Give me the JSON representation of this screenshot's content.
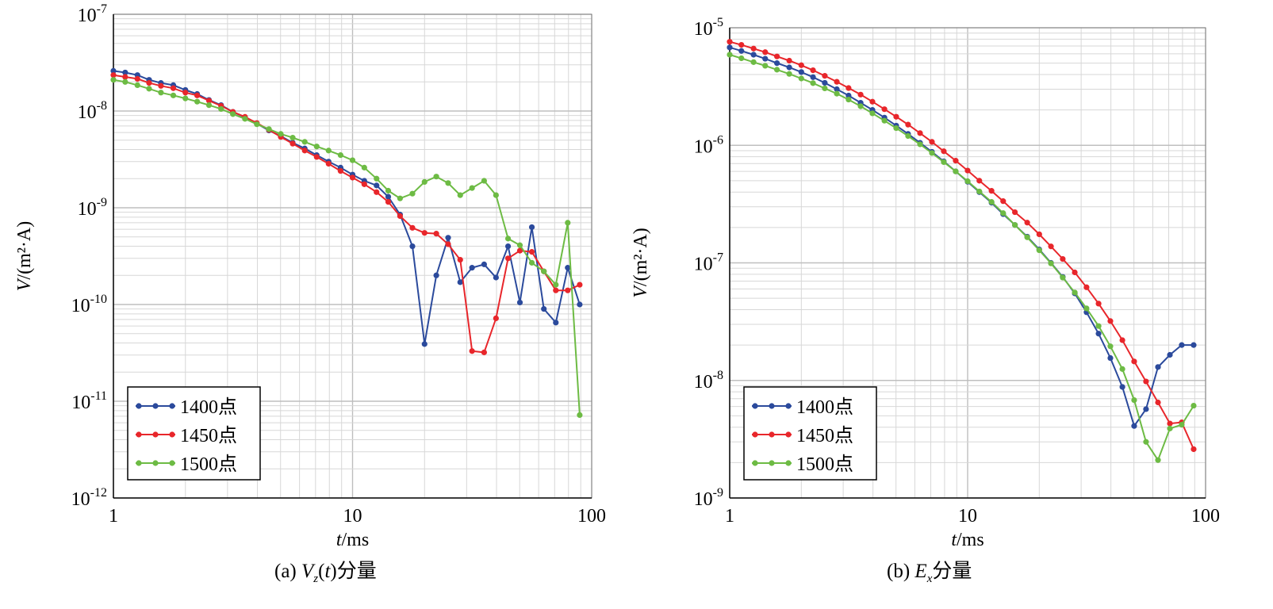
{
  "chart_data": [
    {
      "type": "line",
      "panel": "a",
      "caption": {
        "prefix": "(a) ",
        "var": "V",
        "sub": "z",
        "mid": "(",
        "targ": "t",
        "suffix": ")分量"
      },
      "xlabel": {
        "italic": "t",
        "rest": "/ms"
      },
      "ylabel": {
        "italic": "V",
        "rest": "/(m²·A)"
      },
      "x_scale": "log",
      "y_scale": "log",
      "xlim": [
        1,
        100
      ],
      "ylim": [
        1e-12,
        1e-07
      ],
      "x_ticks": [
        {
          "v": 1,
          "label": "1"
        },
        {
          "v": 10,
          "label": "10"
        },
        {
          "v": 100,
          "label": "100"
        }
      ],
      "y_ticks": [
        {
          "v": 1e-07,
          "base": "10",
          "exp": "-7"
        },
        {
          "v": 1e-08,
          "base": "10",
          "exp": "-8"
        },
        {
          "v": 1e-09,
          "base": "10",
          "exp": "-9"
        },
        {
          "v": 1e-10,
          "base": "10",
          "exp": "-10"
        },
        {
          "v": 1e-11,
          "base": "10",
          "exp": "-11"
        },
        {
          "v": 1e-12,
          "base": "10",
          "exp": "-12"
        }
      ],
      "grid": true,
      "legend_position": "bottom-left",
      "x": [
        1.0,
        1.12,
        1.26,
        1.41,
        1.58,
        1.78,
        2.0,
        2.24,
        2.51,
        2.82,
        3.16,
        3.55,
        3.98,
        4.47,
        5.01,
        5.62,
        6.31,
        7.08,
        7.94,
        8.91,
        10.0,
        11.2,
        12.6,
        14.1,
        15.8,
        17.8,
        20.0,
        22.4,
        25.1,
        28.2,
        31.6,
        35.5,
        39.8,
        44.7,
        50.1,
        56.2,
        63.1,
        70.8,
        79.4,
        89.1
      ],
      "series": [
        {
          "name": "1400点",
          "color": "#2b4a9c",
          "values": [
            2.6e-08,
            2.5e-08,
            2.35e-08,
            2.1e-08,
            1.95e-08,
            1.85e-08,
            1.65e-08,
            1.5e-08,
            1.3e-08,
            1.15e-08,
            9.8e-09,
            8.6e-09,
            7.4e-09,
            6.3e-09,
            5.5e-09,
            4.7e-09,
            4.1e-09,
            3.5e-09,
            3e-09,
            2.6e-09,
            2.2e-09,
            1.9e-09,
            1.7e-09,
            1.3e-09,
            8.5e-10,
            4e-10,
            3.9e-11,
            2e-10,
            4.9e-10,
            1.7e-10,
            2.4e-10,
            2.6e-10,
            1.9e-10,
            4e-10,
            1.05e-10,
            6.3e-10,
            9e-11,
            6.5e-11,
            2.4e-10,
            1e-10
          ]
        },
        {
          "name": "1450点",
          "color": "#e8262b",
          "values": [
            2.35e-08,
            2.25e-08,
            2.15e-08,
            1.95e-08,
            1.82e-08,
            1.72e-08,
            1.55e-08,
            1.45e-08,
            1.28e-08,
            1.13e-08,
            9.8e-09,
            8.7e-09,
            7.5e-09,
            6.4e-09,
            5.4e-09,
            4.6e-09,
            3.9e-09,
            3.35e-09,
            2.85e-09,
            2.4e-09,
            2.05e-09,
            1.75e-09,
            1.45e-09,
            1.15e-09,
            8.2e-10,
            6.2e-10,
            5.5e-10,
            5.4e-10,
            4.2e-10,
            2.9e-10,
            3.3e-11,
            3.2e-11,
            7.2e-11,
            3e-10,
            3.6e-10,
            3.5e-10,
            2.2e-10,
            1.4e-10,
            1.4e-10,
            1.6e-10
          ]
        },
        {
          "name": "1500点",
          "color": "#6dbb44",
          "values": [
            2.1e-08,
            2e-08,
            1.85e-08,
            1.7e-08,
            1.55e-08,
            1.45e-08,
            1.35e-08,
            1.25e-08,
            1.15e-08,
            1.05e-08,
            9.3e-09,
            8.3e-09,
            7.3e-09,
            6.5e-09,
            5.8e-09,
            5.3e-09,
            4.8e-09,
            4.3e-09,
            3.9e-09,
            3.5e-09,
            3.1e-09,
            2.6e-09,
            2e-09,
            1.5e-09,
            1.25e-09,
            1.4e-09,
            1.85e-09,
            2.1e-09,
            1.8e-09,
            1.35e-09,
            1.6e-09,
            1.9e-09,
            1.35e-09,
            4.8e-10,
            4.1e-10,
            2.7e-10,
            2.2e-10,
            1.6e-10,
            7e-10,
            7.2e-12
          ]
        }
      ]
    },
    {
      "type": "line",
      "panel": "b",
      "caption": {
        "prefix": "(b) ",
        "var": "E",
        "sub": "x",
        "suffix": "分量"
      },
      "xlabel": {
        "italic": "t",
        "rest": "/ms"
      },
      "ylabel": {
        "italic": "V",
        "rest": "/(m²·A)"
      },
      "x_scale": "log",
      "y_scale": "log",
      "xlim": [
        1,
        100
      ],
      "ylim": [
        1e-09,
        1e-05
      ],
      "x_ticks": [
        {
          "v": 1,
          "label": "1"
        },
        {
          "v": 10,
          "label": "10"
        },
        {
          "v": 100,
          "label": "100"
        }
      ],
      "y_ticks": [
        {
          "v": 1e-05,
          "base": "10",
          "exp": "-5"
        },
        {
          "v": 1e-06,
          "base": "10",
          "exp": "-6"
        },
        {
          "v": 1e-07,
          "base": "10",
          "exp": "-7"
        },
        {
          "v": 1e-08,
          "base": "10",
          "exp": "-8"
        },
        {
          "v": 1e-09,
          "base": "10",
          "exp": "-9"
        }
      ],
      "grid": true,
      "legend_position": "bottom-left",
      "x": [
        1.0,
        1.12,
        1.26,
        1.41,
        1.58,
        1.78,
        2.0,
        2.24,
        2.51,
        2.82,
        3.16,
        3.55,
        3.98,
        4.47,
        5.01,
        5.62,
        6.31,
        7.08,
        7.94,
        8.91,
        10.0,
        11.2,
        12.6,
        14.1,
        15.8,
        17.8,
        20.0,
        22.4,
        25.1,
        28.2,
        31.6,
        35.5,
        39.8,
        44.7,
        50.1,
        56.2,
        63.1,
        70.8,
        79.4,
        89.1
      ],
      "series": [
        {
          "name": "1400点",
          "color": "#2b4a9c",
          "values": [
            6.8e-06,
            6.35e-06,
            5.9e-06,
            5.45e-06,
            5e-06,
            4.6e-06,
            4.2e-06,
            3.8e-06,
            3.4e-06,
            3e-06,
            2.65e-06,
            2.3e-06,
            2e-06,
            1.72e-06,
            1.47e-06,
            1.25e-06,
            1.05e-06,
            8.8e-07,
            7.3e-07,
            6e-07,
            4.9e-07,
            4e-07,
            3.25e-07,
            2.6e-07,
            2.1e-07,
            1.67e-07,
            1.3e-07,
            1e-07,
            7.6e-08,
            5.5e-08,
            3.8e-08,
            2.5e-08,
            1.55e-08,
            8.8e-09,
            4.1e-09,
            5.7e-09,
            1.3e-08,
            1.65e-08,
            2e-08,
            2e-08
          ]
        },
        {
          "name": "1450点",
          "color": "#e8262b",
          "values": [
            7.6e-06,
            7.15e-06,
            6.65e-06,
            6.2e-06,
            5.7e-06,
            5.25e-06,
            4.8e-06,
            4.35e-06,
            3.9e-06,
            3.47e-06,
            3.07e-06,
            2.7e-06,
            2.35e-06,
            2.03e-06,
            1.75e-06,
            1.5e-06,
            1.27e-06,
            1.07e-06,
            8.9e-07,
            7.4e-07,
            6.1e-07,
            5e-07,
            4.1e-07,
            3.35e-07,
            2.7e-07,
            2.2e-07,
            1.75e-07,
            1.38e-07,
            1.08e-07,
            8.3e-08,
            6.2e-08,
            4.5e-08,
            3.2e-08,
            2.2e-08,
            1.45e-08,
            9.8e-09,
            6.5e-09,
            4.3e-09,
            4.4e-09,
            2.6e-09
          ]
        },
        {
          "name": "1500点",
          "color": "#6dbb44",
          "values": [
            5.9e-06,
            5.5e-06,
            5.1e-06,
            4.75e-06,
            4.4e-06,
            4.05e-06,
            3.7e-06,
            3.38e-06,
            3.05e-06,
            2.75e-06,
            2.45e-06,
            2.15e-06,
            1.87e-06,
            1.62e-06,
            1.4e-06,
            1.2e-06,
            1.02e-06,
            8.6e-07,
            7.2e-07,
            6e-07,
            4.95e-07,
            4.05e-07,
            3.3e-07,
            2.65e-07,
            2.1e-07,
            1.65e-07,
            1.28e-07,
            9.9e-08,
            7.5e-08,
            5.6e-08,
            4.1e-08,
            2.9e-08,
            1.95e-08,
            1.25e-08,
            6.8e-09,
            3e-09,
            2.1e-09,
            3.9e-09,
            4.2e-09,
            6.1e-09
          ]
        }
      ]
    }
  ]
}
